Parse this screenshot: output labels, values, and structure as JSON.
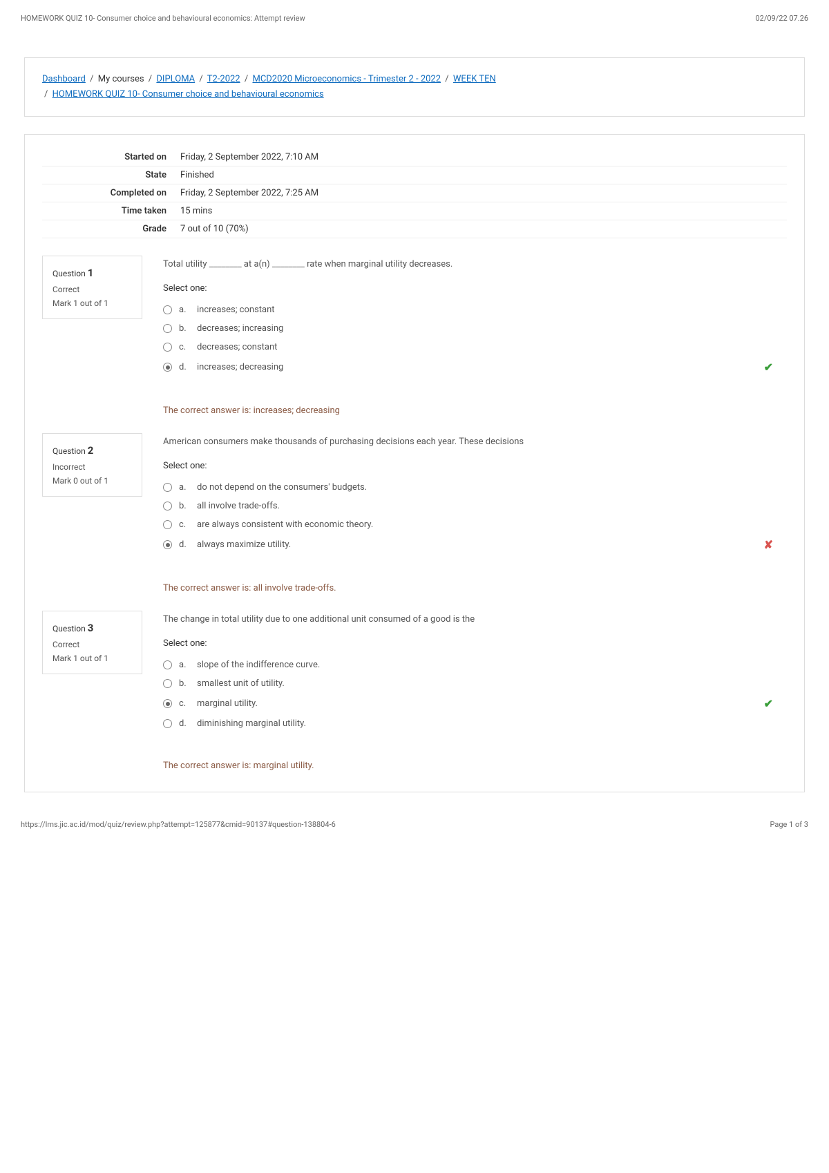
{
  "header": {
    "title": "HOMEWORK QUIZ 10- Consumer choice and behavioural economics: Attempt review",
    "datetime": "02/09/22 07.26"
  },
  "breadcrumb": {
    "dashboard": "Dashboard",
    "mycourses": "My courses",
    "diploma": "DIPLOMA",
    "term": "T2-2022",
    "course": "MCD2020 Microeconomics - Trimester 2 - 2022",
    "week": "WEEK TEN",
    "quiz": "HOMEWORK QUIZ 10- Consumer choice and behavioural economics"
  },
  "summary": {
    "started_label": "Started on",
    "started_val": "Friday, 2 September 2022, 7:10 AM",
    "state_label": "State",
    "state_val": "Finished",
    "completed_label": "Completed on",
    "completed_val": "Friday, 2 September 2022, 7:25 AM",
    "time_label": "Time taken",
    "time_val": "15 mins",
    "grade_label": "Grade",
    "grade_val": "7 out of 10 (70%)"
  },
  "q1": {
    "number": "1",
    "status": "Correct",
    "mark": "Mark 1 out of 1",
    "stem": "Total utility ________ at a(n) ________ rate when marginal utility decreases.",
    "select": "Select one:",
    "a": "increases; constant",
    "b": "decreases; increasing",
    "c": "decreases; constant",
    "d": "increases; decreasing",
    "feedback_prefix": "The correct answer is: ",
    "feedback_ans": "increases; decreasing"
  },
  "q2": {
    "number": "2",
    "status": "Incorrect",
    "mark": "Mark 0 out of 1",
    "stem": "American consumers make thousands of purchasing decisions each year. These decisions",
    "select": "Select one:",
    "a": "do not depend on the consumers' budgets.",
    "b": "all involve trade-offs.",
    "c": "are always consistent with economic theory.",
    "d": "always maximize utility.",
    "feedback_prefix": "The correct answer is: ",
    "feedback_ans": "all involve trade-offs."
  },
  "q3": {
    "number": "3",
    "status": "Correct",
    "mark": "Mark 1 out of 1",
    "stem": "The change in total utility due to one additional unit consumed of a good is the",
    "select": "Select one:",
    "a": "slope of the indifference curve.",
    "b": "smallest unit of utility.",
    "c": "marginal utility.",
    "d": "diminishing marginal utility.",
    "feedback_prefix": "The correct answer is: ",
    "feedback_ans": "marginal utility."
  },
  "footer": {
    "url": "https://lms.jic.ac.id/mod/quiz/review.php?attempt=125877&cmid=90137#question-138804-6",
    "page": "Page 1 of 3"
  },
  "labels": {
    "question_prefix": "Question ",
    "a": "a.",
    "b": "b.",
    "c": "c.",
    "d": "d.",
    "sep": "/"
  }
}
